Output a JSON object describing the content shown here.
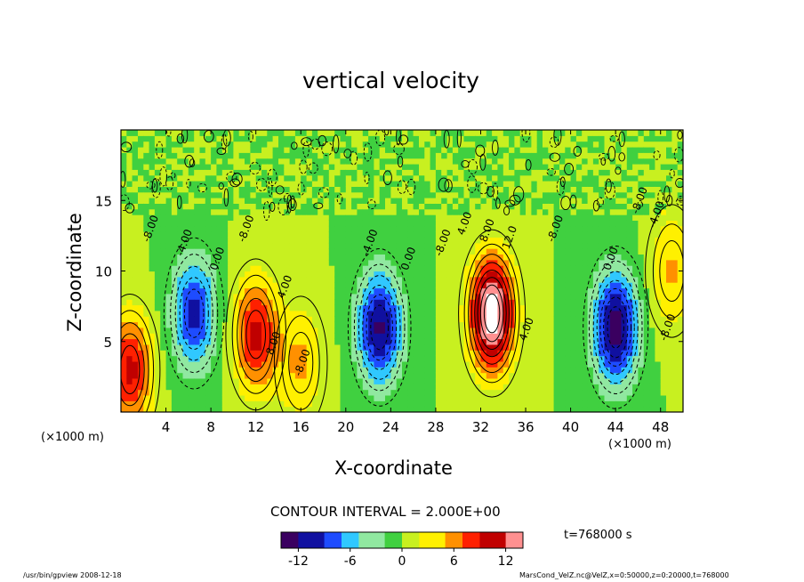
{
  "chart_data": {
    "type": "heatmap",
    "title": "vertical velocity",
    "xlabel": "X-coordinate",
    "ylabel": "Z-coordinate",
    "x_unit_label": "(×1000 m)",
    "xlim": [
      0,
      50
    ],
    "ylim": [
      0,
      20
    ],
    "x_ticks": [
      4,
      8,
      12,
      16,
      20,
      24,
      28,
      32,
      36,
      40,
      44,
      48
    ],
    "y_ticks": [
      5,
      10,
      15
    ],
    "contour_interval_text": "CONTOUR INTERVAL = 2.000E+00",
    "time_text": "t=768000 s",
    "colorbar": {
      "ticks": [
        -12,
        -6,
        0,
        6,
        12
      ],
      "range": [
        -14,
        14
      ],
      "colormap": [
        "#3a0060",
        "#1010a0",
        "#1e4cff",
        "#30c8ff",
        "#90e8a0",
        "#40d040",
        "#c8f020",
        "#fff000",
        "#ff9000",
        "#ff2000",
        "#c00000",
        "#ff9090"
      ]
    },
    "contour_labels": [
      "-8.00",
      "-4.00",
      "0.00",
      "4.00",
      "8.00",
      "12.0"
    ],
    "features": [
      {
        "x": 0.8,
        "z": 3,
        "value": 10
      },
      {
        "x": 6.5,
        "z": 7,
        "value": -10
      },
      {
        "x": 12,
        "z": 5.5,
        "value": 10
      },
      {
        "x": 16,
        "z": 3.5,
        "value": 5
      },
      {
        "x": 23,
        "z": 6,
        "value": -12
      },
      {
        "x": 33,
        "z": 7,
        "value": 16
      },
      {
        "x": 44,
        "z": 6,
        "value": -13
      },
      {
        "x": 49,
        "z": 10,
        "value": 5
      }
    ]
  },
  "footer": {
    "left": "/usr/bin/gpview  2008-12-18",
    "right": "MarsCond_VelZ.nc@VelZ,x=0:50000,z=0:20000,t=768000"
  },
  "colors": {
    "background_field": "#78d850",
    "axis": "#000000"
  }
}
